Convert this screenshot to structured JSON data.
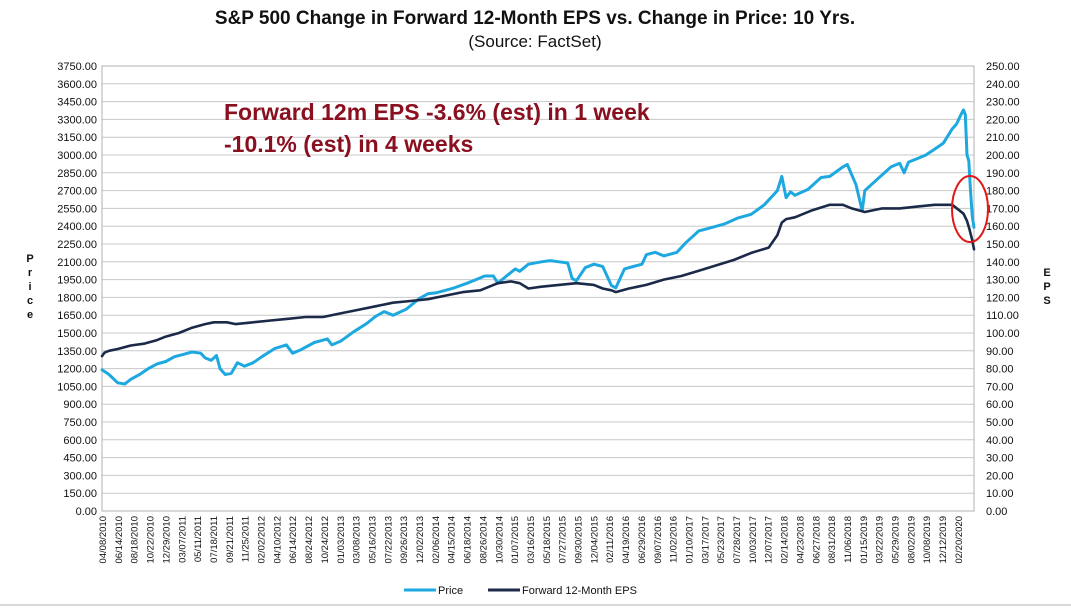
{
  "chart_data": {
    "type": "line",
    "title": "S&P 500 Change in Forward 12-Month EPS vs. Change in Price: 10 Yrs.",
    "subtitle": "(Source: FactSet)",
    "ylabel": "Price",
    "y2label": "EPS",
    "ylim": [
      0,
      3750
    ],
    "y2lim": [
      0,
      250
    ],
    "yticks": [
      "0.00",
      "150.00",
      "300.00",
      "450.00",
      "600.00",
      "750.00",
      "900.00",
      "1050.00",
      "1200.00",
      "1350.00",
      "1500.00",
      "1650.00",
      "1800.00",
      "1950.00",
      "2100.00",
      "2250.00",
      "2400.00",
      "2550.00",
      "2700.00",
      "2850.00",
      "3000.00",
      "3150.00",
      "3300.00",
      "3450.00",
      "3600.00",
      "3750.00"
    ],
    "y2ticks": [
      "0.00",
      "10.00",
      "20.00",
      "30.00",
      "40.00",
      "50.00",
      "60.00",
      "70.00",
      "80.00",
      "90.00",
      "100.00",
      "110.00",
      "120.00",
      "130.00",
      "140.00",
      "150.00",
      "160.00",
      "170.00",
      "180.00",
      "190.00",
      "200.00",
      "210.00",
      "220.00",
      "230.00",
      "240.00",
      "250.00"
    ],
    "xlim": [
      2010.27,
      2020.25
    ],
    "xticks": [
      "04/08/2010",
      "06/14/2010",
      "08/18/2010",
      "10/22/2010",
      "12/29/2010",
      "03/07/2011",
      "05/11/2011",
      "07/18/2011",
      "09/21/2011",
      "11/25/2011",
      "02/02/2012",
      "04/10/2012",
      "06/14/2012",
      "08/24/2012",
      "10/24/2012",
      "01/03/2013",
      "03/08/2013",
      "05/16/2013",
      "07/22/2013",
      "09/26/2013",
      "12/02/2013",
      "02/06/2014",
      "04/15/2014",
      "06/18/2014",
      "08/26/2014",
      "10/30/2014",
      "01/07/2015",
      "03/16/2015",
      "05/18/2015",
      "07/27/2015",
      "09/30/2015",
      "12/04/2015",
      "02/11/2016",
      "04/19/2016",
      "06/29/2016",
      "09/07/2016",
      "11/02/2016",
      "01/10/2017",
      "03/17/2017",
      "05/23/2017",
      "07/28/2017",
      "10/03/2017",
      "12/07/2017",
      "02/14/2018",
      "04/23/2018",
      "06/27/2018",
      "08/31/2018",
      "11/06/2018",
      "01/15/2019",
      "03/22/2019",
      "05/29/2019",
      "08/02/2019",
      "10/08/2019",
      "12/12/2019",
      "02/20/2020"
    ],
    "annotation_lines": [
      "Forward 12m EPS -3.6% (est) in 1 week",
      "-10.1% (est) in 4 weeks"
    ],
    "series": [
      {
        "name": "Price",
        "axis": "left",
        "color": "#1ea8e0",
        "x": [
          2010.27,
          2010.35,
          2010.45,
          2010.53,
          2010.6,
          2010.7,
          2010.8,
          2010.9,
          2011.0,
          2011.1,
          2011.2,
          2011.3,
          2011.4,
          2011.45,
          2011.52,
          2011.58,
          2011.62,
          2011.68,
          2011.75,
          2011.82,
          2011.9,
          2012.0,
          2012.1,
          2012.25,
          2012.38,
          2012.45,
          2012.55,
          2012.7,
          2012.85,
          2012.9,
          2013.0,
          2013.15,
          2013.3,
          2013.4,
          2013.5,
          2013.6,
          2013.75,
          2013.9,
          2014.0,
          2014.1,
          2014.2,
          2014.3,
          2014.45,
          2014.55,
          2014.65,
          2014.75,
          2014.8,
          2014.9,
          2015.0,
          2015.05,
          2015.15,
          2015.3,
          2015.4,
          2015.5,
          2015.6,
          2015.65,
          2015.7,
          2015.8,
          2015.9,
          2016.0,
          2016.1,
          2016.15,
          2016.25,
          2016.35,
          2016.45,
          2016.5,
          2016.6,
          2016.7,
          2016.85,
          2016.95,
          2017.1,
          2017.25,
          2017.4,
          2017.55,
          2017.7,
          2017.85,
          2018.0,
          2018.05,
          2018.1,
          2018.15,
          2018.2,
          2018.35,
          2018.5,
          2018.6,
          2018.75,
          2018.8,
          2018.9,
          2018.97,
          2019.0,
          2019.15,
          2019.3,
          2019.4,
          2019.45,
          2019.5,
          2019.6,
          2019.7,
          2019.8,
          2019.9,
          2020.0,
          2020.05,
          2020.1,
          2020.13,
          2020.15,
          2020.17,
          2020.19,
          2020.21,
          2020.23,
          2020.25
        ],
        "values": [
          1190,
          1150,
          1080,
          1070,
          1110,
          1150,
          1200,
          1240,
          1260,
          1300,
          1320,
          1340,
          1330,
          1290,
          1270,
          1310,
          1200,
          1150,
          1160,
          1250,
          1220,
          1250,
          1300,
          1370,
          1400,
          1330,
          1360,
          1420,
          1450,
          1400,
          1430,
          1510,
          1580,
          1640,
          1680,
          1650,
          1700,
          1790,
          1830,
          1840,
          1860,
          1880,
          1920,
          1950,
          1980,
          1980,
          1920,
          1980,
          2040,
          2020,
          2080,
          2100,
          2110,
          2100,
          2090,
          1960,
          1940,
          2050,
          2080,
          2060,
          1900,
          1880,
          2040,
          2060,
          2080,
          2160,
          2180,
          2150,
          2180,
          2260,
          2360,
          2390,
          2420,
          2470,
          2500,
          2580,
          2700,
          2820,
          2640,
          2690,
          2660,
          2710,
          2810,
          2820,
          2900,
          2920,
          2750,
          2530,
          2700,
          2800,
          2900,
          2930,
          2850,
          2940,
          2970,
          3000,
          3050,
          3100,
          3220,
          3260,
          3340,
          3380,
          3340,
          3000,
          2950,
          2700,
          2480,
          2390
        ]
      },
      {
        "name": "Forward 12-Month EPS",
        "axis": "right",
        "color": "#1c2a4a",
        "x": [
          2010.27,
          2010.3,
          2010.35,
          2010.45,
          2010.6,
          2010.75,
          2010.9,
          2011.0,
          2011.15,
          2011.3,
          2011.45,
          2011.55,
          2011.7,
          2011.8,
          2012.0,
          2012.2,
          2012.4,
          2012.6,
          2012.8,
          2013.0,
          2013.2,
          2013.4,
          2013.6,
          2013.8,
          2014.0,
          2014.2,
          2014.4,
          2014.6,
          2014.8,
          2014.95,
          2015.05,
          2015.15,
          2015.3,
          2015.5,
          2015.7,
          2015.9,
          2016.0,
          2016.1,
          2016.15,
          2016.3,
          2016.5,
          2016.7,
          2016.9,
          2017.1,
          2017.3,
          2017.5,
          2017.7,
          2017.9,
          2018.0,
          2018.05,
          2018.1,
          2018.2,
          2018.4,
          2018.6,
          2018.75,
          2018.85,
          2019.0,
          2019.2,
          2019.4,
          2019.6,
          2019.8,
          2020.0,
          2020.08,
          2020.13,
          2020.17,
          2020.2,
          2020.23,
          2020.25
        ],
        "values": [
          87,
          89,
          90,
          91,
          93,
          94,
          96,
          98,
          100,
          103,
          105,
          106,
          106,
          105,
          106,
          107,
          108,
          109,
          109,
          111,
          113,
          115,
          117,
          118,
          119,
          121,
          123,
          124,
          128,
          129,
          128,
          125,
          126,
          127,
          128,
          127,
          125,
          124,
          123,
          125,
          127,
          130,
          132,
          135,
          138,
          141,
          145,
          148,
          155,
          162,
          164,
          165,
          169,
          172,
          172,
          170,
          168,
          170,
          170,
          171,
          172,
          172,
          169,
          167,
          163,
          158,
          152,
          147
        ]
      }
    ]
  }
}
